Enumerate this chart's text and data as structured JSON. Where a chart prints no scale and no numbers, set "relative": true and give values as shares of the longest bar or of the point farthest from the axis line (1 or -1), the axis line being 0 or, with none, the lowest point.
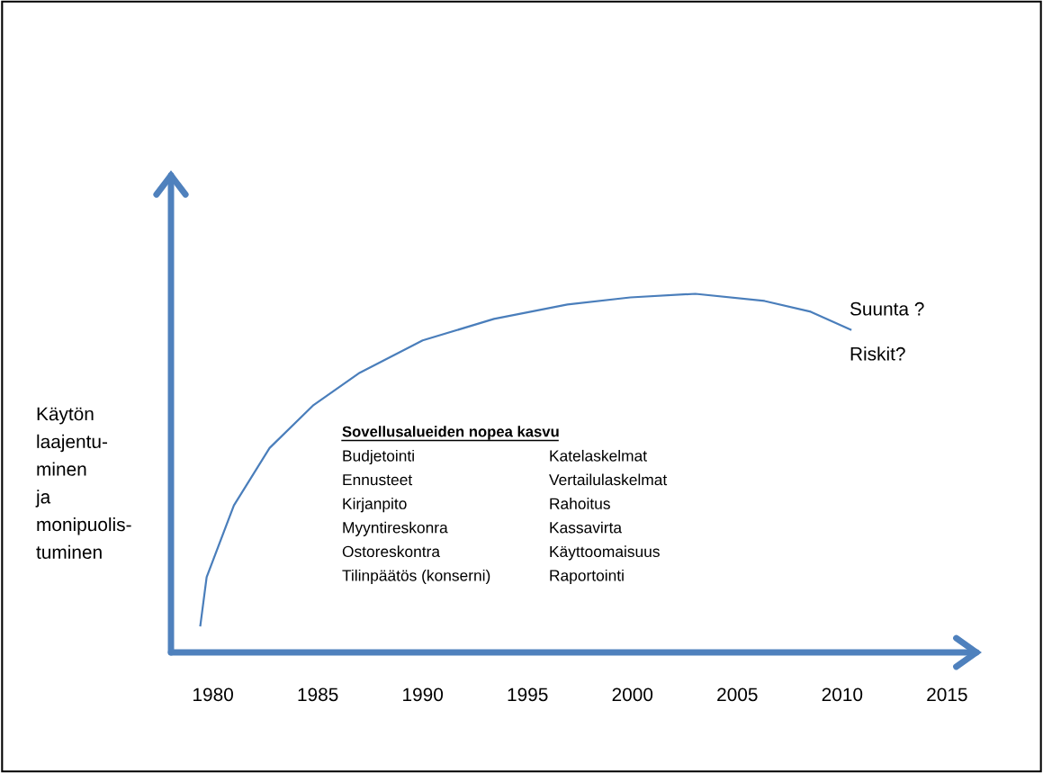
{
  "chart_data": {
    "type": "line",
    "relative": true,
    "ylabel": "Käytön\nlaajentu-\nminen\nja\nmonipuolis-\ntuminen",
    "x": [
      1979.4,
      1979.7,
      1981,
      1982.7,
      1984.8,
      1987,
      1990,
      1993.4,
      1996.9,
      1999.9,
      2003,
      2006.3,
      2008.5,
      2010.4
    ],
    "series": [
      {
        "color": "#4a7ebb",
        "values": [
          0.075,
          0.21,
          0.41,
          0.57,
          0.69,
          0.78,
          0.87,
          0.93,
          0.97,
          0.99,
          1,
          0.98,
          0.95,
          0.9
        ]
      }
    ],
    "xlim": [
      1978,
      2016.4
    ],
    "xticks": [
      1980,
      1985,
      1990,
      1995,
      2000,
      2005,
      2010,
      2015
    ],
    "grid": false,
    "legend": false,
    "marker": "none",
    "line_style": "solid",
    "annotations": [
      "Sovellusalueiden nopea kasvu",
      "Budjetointi",
      "Ennusteet",
      "Kirjanpito",
      "Myyntireskonra",
      "Ostoreskontra",
      "Tilinpäätös (konserni)",
      "Katelaskelmat",
      "Vertailulaskelmat",
      "Rahoitus",
      "Kassavirta",
      "Käyttoomaisuus",
      "Raportointi",
      "Suunta ?",
      "Riskit?"
    ]
  }
}
